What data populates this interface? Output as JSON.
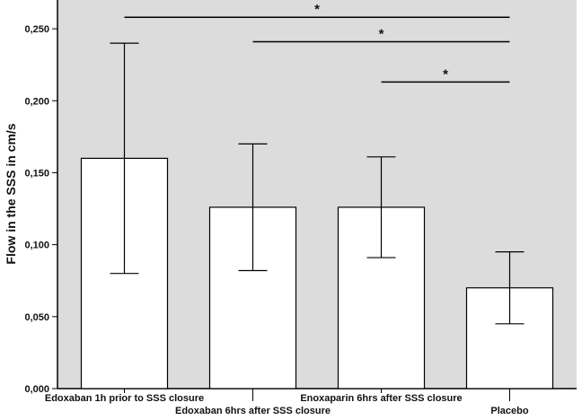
{
  "chart_data": {
    "type": "bar",
    "ylabel": "Flow in the SSS in cm/s",
    "ylim": [
      0,
      0.27
    ],
    "yticks": [
      "0,000",
      "0,050",
      "0,100",
      "0,150",
      "0,200",
      "0,250"
    ],
    "ytick_values": [
      0,
      0.05,
      0.1,
      0.15,
      0.2,
      0.25
    ],
    "categories": [
      "Edoxaban 1h prior to SSS closure",
      "Edoxaban 6hrs after SSS closure",
      "Enoxaparin 6hrs after SSS closure",
      "Placebo"
    ],
    "values": [
      0.16,
      0.126,
      0.126,
      0.07
    ],
    "error_low": [
      0.08,
      0.082,
      0.091,
      0.045
    ],
    "error_high": [
      0.24,
      0.17,
      0.161,
      0.095
    ],
    "significance": [
      {
        "from": 0,
        "to": 3,
        "y": 0.258,
        "label": "*"
      },
      {
        "from": 1,
        "to": 3,
        "y": 0.241,
        "label": "*"
      },
      {
        "from": 2,
        "to": 3,
        "y": 0.213,
        "label": "*"
      }
    ],
    "background": "#dcdcdc",
    "bar_fill": "#ffffff",
    "grid": false
  }
}
